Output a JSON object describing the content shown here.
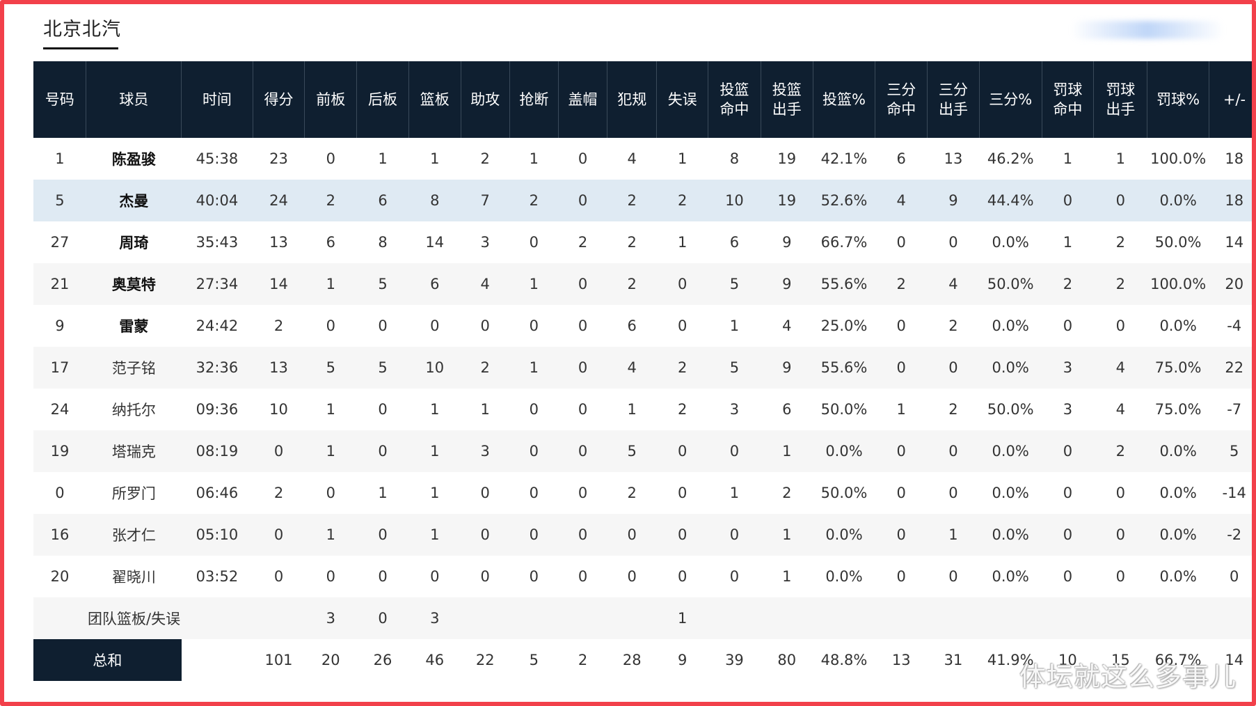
{
  "tab": {
    "label": "北京北汽"
  },
  "headers": [
    "号码",
    "球员",
    "时间",
    "得分",
    "前板",
    "后板",
    "篮板",
    "助攻",
    "抢断",
    "盖帽",
    "犯规",
    "失误",
    "投篮\n命中",
    "投篮\n出手",
    "投篮%",
    "三分\n命中",
    "三分\n出手",
    "三分%",
    "罚球\n命中",
    "罚球\n出手",
    "罚球%",
    "+/-"
  ],
  "players": [
    {
      "num": "1",
      "name": "陈盈骏",
      "starter": true,
      "time": "45:38",
      "pts": "23",
      "oreb": "0",
      "dreb": "1",
      "reb": "1",
      "ast": "2",
      "stl": "1",
      "blk": "0",
      "pf": "4",
      "tov": "1",
      "fgm": "8",
      "fga": "19",
      "fgp": "42.1%",
      "tpm": "6",
      "tpa": "13",
      "tpp": "46.2%",
      "ftm": "1",
      "fta": "1",
      "ftp": "100.0%",
      "pm": "18"
    },
    {
      "num": "5",
      "name": "杰曼",
      "starter": true,
      "highlight": true,
      "time": "40:04",
      "pts": "24",
      "oreb": "2",
      "dreb": "6",
      "reb": "8",
      "ast": "7",
      "stl": "2",
      "blk": "0",
      "pf": "2",
      "tov": "2",
      "fgm": "10",
      "fga": "19",
      "fgp": "52.6%",
      "tpm": "4",
      "tpa": "9",
      "tpp": "44.4%",
      "ftm": "0",
      "fta": "0",
      "ftp": "0.0%",
      "pm": "18"
    },
    {
      "num": "27",
      "name": "周琦",
      "starter": true,
      "time": "35:43",
      "pts": "13",
      "oreb": "6",
      "dreb": "8",
      "reb": "14",
      "ast": "3",
      "stl": "0",
      "blk": "2",
      "pf": "2",
      "tov": "1",
      "fgm": "6",
      "fga": "9",
      "fgp": "66.7%",
      "tpm": "0",
      "tpa": "0",
      "tpp": "0.0%",
      "ftm": "1",
      "fta": "2",
      "ftp": "50.0%",
      "pm": "14"
    },
    {
      "num": "21",
      "name": "奥莫特",
      "starter": true,
      "time": "27:34",
      "pts": "14",
      "oreb": "1",
      "dreb": "5",
      "reb": "6",
      "ast": "4",
      "stl": "1",
      "blk": "0",
      "pf": "2",
      "tov": "0",
      "fgm": "5",
      "fga": "9",
      "fgp": "55.6%",
      "tpm": "2",
      "tpa": "4",
      "tpp": "50.0%",
      "ftm": "2",
      "fta": "2",
      "ftp": "100.0%",
      "pm": "20"
    },
    {
      "num": "9",
      "name": "雷蒙",
      "starter": true,
      "time": "24:42",
      "pts": "2",
      "oreb": "0",
      "dreb": "0",
      "reb": "0",
      "ast": "0",
      "stl": "0",
      "blk": "0",
      "pf": "6",
      "tov": "0",
      "fgm": "1",
      "fga": "4",
      "fgp": "25.0%",
      "tpm": "0",
      "tpa": "2",
      "tpp": "0.0%",
      "ftm": "0",
      "fta": "0",
      "ftp": "0.0%",
      "pm": "-4"
    },
    {
      "num": "17",
      "name": "范子铭",
      "starter": false,
      "time": "32:36",
      "pts": "13",
      "oreb": "5",
      "dreb": "5",
      "reb": "10",
      "ast": "2",
      "stl": "1",
      "blk": "0",
      "pf": "4",
      "tov": "2",
      "fgm": "5",
      "fga": "9",
      "fgp": "55.6%",
      "tpm": "0",
      "tpa": "0",
      "tpp": "0.0%",
      "ftm": "3",
      "fta": "4",
      "ftp": "75.0%",
      "pm": "22"
    },
    {
      "num": "24",
      "name": "纳托尔",
      "starter": false,
      "time": "09:36",
      "pts": "10",
      "oreb": "1",
      "dreb": "0",
      "reb": "1",
      "ast": "1",
      "stl": "0",
      "blk": "0",
      "pf": "1",
      "tov": "2",
      "fgm": "3",
      "fga": "6",
      "fgp": "50.0%",
      "tpm": "1",
      "tpa": "2",
      "tpp": "50.0%",
      "ftm": "3",
      "fta": "4",
      "ftp": "75.0%",
      "pm": "-7"
    },
    {
      "num": "19",
      "name": "塔瑞克",
      "starter": false,
      "time": "08:19",
      "pts": "0",
      "oreb": "1",
      "dreb": "0",
      "reb": "1",
      "ast": "3",
      "stl": "0",
      "blk": "0",
      "pf": "5",
      "tov": "0",
      "fgm": "0",
      "fga": "1",
      "fgp": "0.0%",
      "tpm": "0",
      "tpa": "0",
      "tpp": "0.0%",
      "ftm": "0",
      "fta": "2",
      "ftp": "0.0%",
      "pm": "5"
    },
    {
      "num": "0",
      "name": "所罗门",
      "starter": false,
      "time": "06:46",
      "pts": "2",
      "oreb": "0",
      "dreb": "1",
      "reb": "1",
      "ast": "0",
      "stl": "0",
      "blk": "0",
      "pf": "2",
      "tov": "0",
      "fgm": "1",
      "fga": "2",
      "fgp": "50.0%",
      "tpm": "0",
      "tpa": "0",
      "tpp": "0.0%",
      "ftm": "0",
      "fta": "0",
      "ftp": "0.0%",
      "pm": "-14"
    },
    {
      "num": "16",
      "name": "张才仁",
      "starter": false,
      "time": "05:10",
      "pts": "0",
      "oreb": "1",
      "dreb": "0",
      "reb": "1",
      "ast": "0",
      "stl": "0",
      "blk": "0",
      "pf": "0",
      "tov": "0",
      "fgm": "0",
      "fga": "1",
      "fgp": "0.0%",
      "tpm": "0",
      "tpa": "1",
      "tpp": "0.0%",
      "ftm": "0",
      "fta": "0",
      "ftp": "0.0%",
      "pm": "-2"
    },
    {
      "num": "20",
      "name": "翟晓川",
      "starter": false,
      "time": "03:52",
      "pts": "0",
      "oreb": "0",
      "dreb": "0",
      "reb": "0",
      "ast": "0",
      "stl": "0",
      "blk": "0",
      "pf": "0",
      "tov": "0",
      "fgm": "0",
      "fga": "1",
      "fgp": "0.0%",
      "tpm": "0",
      "tpa": "0",
      "tpp": "0.0%",
      "ftm": "0",
      "fta": "0",
      "ftp": "0.0%",
      "pm": "0"
    }
  ],
  "team_row": {
    "label": "团队篮板/失误",
    "oreb": "3",
    "dreb": "0",
    "reb": "3",
    "tov": "1"
  },
  "total_row": {
    "label": "总和",
    "pts": "101",
    "oreb": "20",
    "dreb": "26",
    "reb": "46",
    "ast": "22",
    "stl": "5",
    "blk": "2",
    "pf": "28",
    "tov": "9",
    "fgm": "39",
    "fga": "80",
    "fgp": "48.8%",
    "tpm": "13",
    "tpa": "31",
    "tpp": "41.9%",
    "ftm": "10",
    "fta": "15",
    "ftp": "66.7%",
    "pm": "14"
  },
  "watermark": "体坛就这么多事儿",
  "colors": {
    "header_bg": "#0f1f30",
    "highlight_row": "#dfeaf3",
    "border": "#f2404a"
  }
}
